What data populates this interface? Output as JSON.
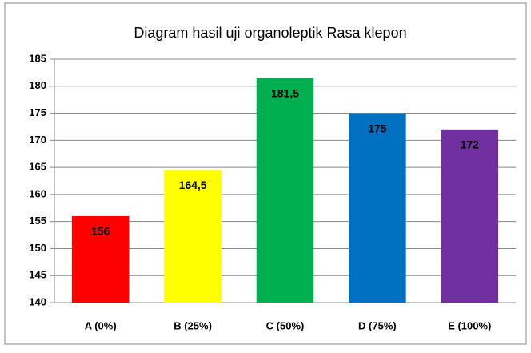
{
  "chart_data": {
    "type": "bar",
    "title": "Diagram hasil uji organoleptik Rasa klepon",
    "categories": [
      "A (0%)",
      "B (25%)",
      "C (50%)",
      "D (75%)",
      "E (100%)"
    ],
    "values": [
      156,
      164.5,
      181.5,
      175,
      172
    ],
    "value_labels": [
      "156",
      "164,5",
      "181,5",
      "175",
      "172"
    ],
    "colors": [
      "#ff0000",
      "#ffff00",
      "#00b050",
      "#0070c0",
      "#7030a0"
    ],
    "ylim": [
      140,
      185
    ],
    "yticks": [
      140,
      145,
      150,
      155,
      160,
      165,
      170,
      175,
      180,
      185
    ],
    "grid": true
  }
}
